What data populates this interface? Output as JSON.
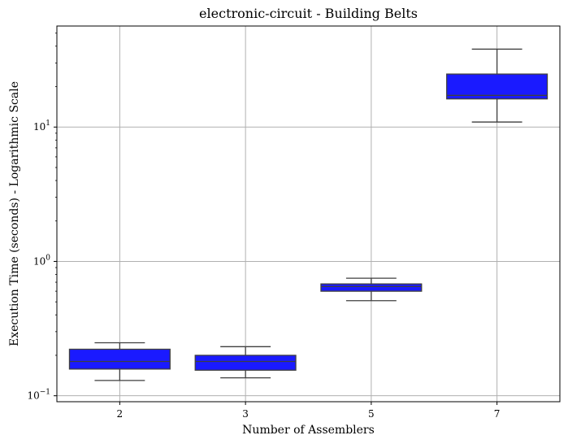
{
  "chart_data": {
    "type": "box",
    "title": "electronic-circuit - Building Belts",
    "xlabel": "Number of Assemblers",
    "ylabel": "Execution Time (seconds) - Logarithmic Scale",
    "yscale": "log",
    "ylim": [
      0.1,
      50
    ],
    "grid": true,
    "categories": [
      "2",
      "3",
      "5",
      "7"
    ],
    "y_ticks": [
      {
        "value": 0.1,
        "base": "10",
        "exp": "−1"
      },
      {
        "value": 1,
        "base": "10",
        "exp": "0"
      },
      {
        "value": 10,
        "base": "10",
        "exp": "1"
      }
    ],
    "boxes": [
      {
        "category": "2",
        "whisker_low": 0.13,
        "q1": 0.158,
        "median": 0.18,
        "q3": 0.222,
        "whisker_high": 0.248
      },
      {
        "category": "3",
        "whisker_low": 0.136,
        "q1": 0.155,
        "median": 0.18,
        "q3": 0.2,
        "whisker_high": 0.232
      },
      {
        "category": "5",
        "whisker_low": 0.51,
        "q1": 0.6,
        "median": 0.65,
        "q3": 0.68,
        "whisker_high": 0.75
      },
      {
        "category": "7",
        "whisker_low": 10.9,
        "q1": 16.2,
        "median": 17.2,
        "q3": 24.8,
        "whisker_high": 38.0
      }
    ],
    "colors": {
      "box_fill": "#1a1aff",
      "box_edge": "#3f3f3f",
      "grid": "#b0b0b0",
      "axis": "#000000"
    }
  }
}
